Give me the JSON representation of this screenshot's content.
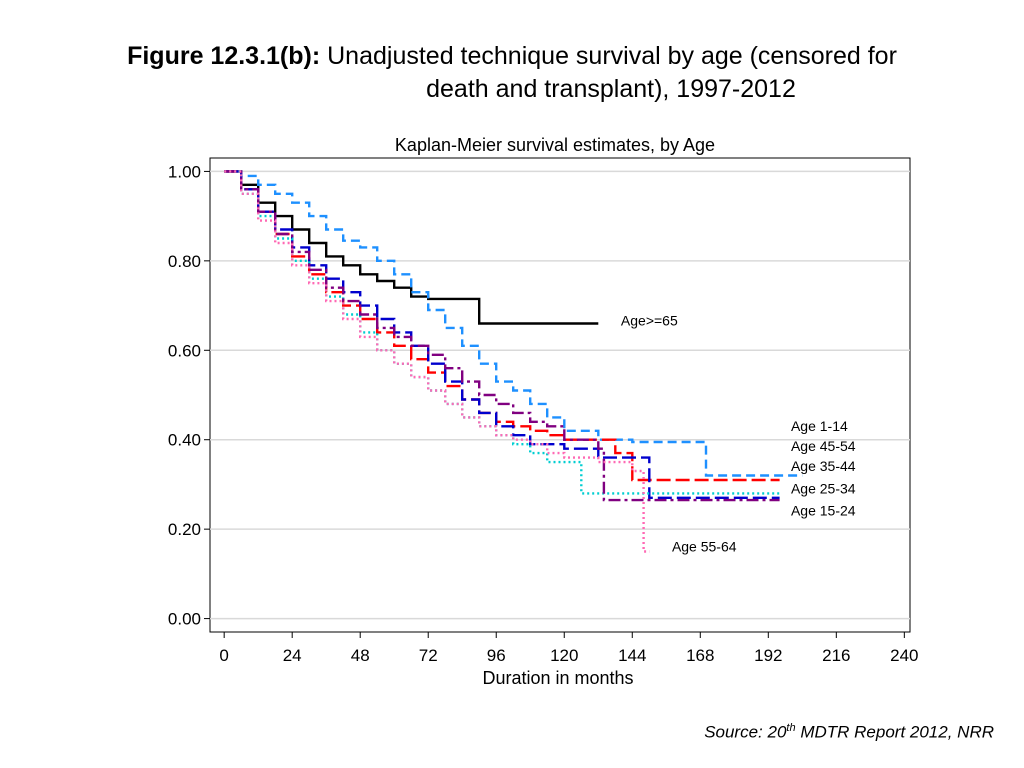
{
  "figure": {
    "label": "Figure 12.3.1(b):",
    "title_line1": "Unadjusted technique survival by age (censored for",
    "title_line2": "death and transplant), 1997-2012"
  },
  "source": {
    "prefix": "Source: 20",
    "superscript": "th",
    "suffix": " MDTR Report 2012, NRR"
  },
  "chart_data": {
    "type": "line",
    "title": "Kaplan-Meier survival estimates, by Age",
    "xlabel": "Duration in months",
    "ylabel": "",
    "xlim": [
      -5,
      242
    ],
    "ylim": [
      -0.03,
      1.03
    ],
    "x_ticks": [
      0,
      24,
      48,
      72,
      96,
      120,
      144,
      168,
      192,
      216,
      240
    ],
    "y_ticks": [
      0,
      0.2,
      0.4,
      0.6,
      0.8,
      1.0
    ],
    "y_tick_labels": [
      "0.00",
      "0.20",
      "0.40",
      "0.60",
      "0.80",
      "1.00"
    ],
    "grid": "horizontal",
    "step": true,
    "series": [
      {
        "name": "Age>=65",
        "color": "#000000",
        "dash": "solid",
        "x": [
          0,
          6,
          12,
          18,
          24,
          30,
          36,
          42,
          48,
          54,
          60,
          66,
          72,
          84,
          90,
          132
        ],
        "y": [
          1.0,
          0.97,
          0.93,
          0.9,
          0.87,
          0.84,
          0.81,
          0.79,
          0.77,
          0.755,
          0.74,
          0.72,
          0.715,
          0.715,
          0.66,
          0.66
        ]
      },
      {
        "name": "Age 1-14",
        "color": "#1E90FF",
        "dash": "dashed",
        "x": [
          0,
          6,
          12,
          18,
          24,
          30,
          36,
          42,
          48,
          54,
          60,
          66,
          72,
          78,
          84,
          90,
          96,
          102,
          108,
          114,
          120,
          132,
          144,
          156,
          168,
          170,
          192,
          204
        ],
        "y": [
          1.0,
          0.99,
          0.97,
          0.95,
          0.93,
          0.9,
          0.87,
          0.845,
          0.83,
          0.8,
          0.77,
          0.73,
          0.69,
          0.65,
          0.61,
          0.57,
          0.53,
          0.51,
          0.48,
          0.45,
          0.42,
          0.4,
          0.395,
          0.395,
          0.395,
          0.32,
          0.32,
          0.32
        ]
      },
      {
        "name": "Age 45-54",
        "color": "#FF0000",
        "dash": "longdash",
        "x": [
          0,
          6,
          12,
          18,
          24,
          30,
          36,
          42,
          48,
          54,
          60,
          66,
          72,
          78,
          84,
          90,
          96,
          102,
          108,
          114,
          120,
          132,
          138,
          144,
          156,
          168,
          196
        ],
        "y": [
          1.0,
          0.96,
          0.91,
          0.86,
          0.81,
          0.77,
          0.73,
          0.7,
          0.67,
          0.64,
          0.61,
          0.58,
          0.55,
          0.52,
          0.49,
          0.46,
          0.44,
          0.43,
          0.42,
          0.41,
          0.4,
          0.4,
          0.37,
          0.31,
          0.31,
          0.31,
          0.31
        ]
      },
      {
        "name": "Age 35-44",
        "color": "#0000CD",
        "dash": "longdash",
        "x": [
          0,
          6,
          12,
          18,
          24,
          30,
          36,
          42,
          48,
          54,
          60,
          66,
          72,
          78,
          84,
          90,
          96,
          102,
          108,
          114,
          120,
          132,
          144,
          150,
          168,
          196
        ],
        "y": [
          1.0,
          0.96,
          0.91,
          0.87,
          0.83,
          0.79,
          0.76,
          0.73,
          0.7,
          0.67,
          0.64,
          0.61,
          0.57,
          0.53,
          0.49,
          0.46,
          0.43,
          0.41,
          0.39,
          0.39,
          0.38,
          0.36,
          0.36,
          0.27,
          0.27,
          0.27
        ]
      },
      {
        "name": "Age 25-34",
        "color": "#00CED1",
        "dash": "dotted",
        "x": [
          0,
          6,
          12,
          18,
          24,
          30,
          36,
          42,
          48,
          54,
          60,
          66,
          72,
          78,
          84,
          90,
          96,
          102,
          108,
          114,
          120,
          126,
          144,
          168,
          196
        ],
        "y": [
          1.0,
          0.95,
          0.9,
          0.85,
          0.8,
          0.76,
          0.72,
          0.68,
          0.64,
          0.6,
          0.57,
          0.54,
          0.51,
          0.48,
          0.45,
          0.43,
          0.41,
          0.39,
          0.37,
          0.35,
          0.35,
          0.28,
          0.28,
          0.28,
          0.28
        ]
      },
      {
        "name": "Age 15-24",
        "color": "#800080",
        "dash": "dashdot",
        "x": [
          0,
          6,
          12,
          18,
          24,
          30,
          36,
          42,
          48,
          54,
          60,
          66,
          72,
          78,
          84,
          90,
          96,
          102,
          108,
          114,
          120,
          132,
          134,
          144,
          168,
          196
        ],
        "y": [
          1.0,
          0.96,
          0.91,
          0.86,
          0.82,
          0.78,
          0.74,
          0.71,
          0.68,
          0.65,
          0.63,
          0.61,
          0.59,
          0.56,
          0.53,
          0.5,
          0.48,
          0.46,
          0.44,
          0.43,
          0.4,
          0.38,
          0.265,
          0.265,
          0.265,
          0.265
        ]
      },
      {
        "name": "Age 55-64",
        "color": "#FF69B4",
        "dash": "dotted",
        "x": [
          0,
          6,
          12,
          18,
          24,
          30,
          36,
          42,
          48,
          54,
          60,
          66,
          72,
          78,
          84,
          90,
          96,
          102,
          108,
          114,
          120,
          132,
          144,
          148,
          150
        ],
        "y": [
          1.0,
          0.95,
          0.89,
          0.84,
          0.79,
          0.75,
          0.71,
          0.67,
          0.63,
          0.6,
          0.57,
          0.54,
          0.51,
          0.48,
          0.45,
          0.43,
          0.41,
          0.4,
          0.39,
          0.37,
          0.36,
          0.35,
          0.33,
          0.15,
          0.15
        ]
      }
    ],
    "annotations": [
      {
        "text": "Age>=65",
        "series": "Age>=65",
        "x": 140,
        "y": 0.655
      },
      {
        "text": "Age 1-14",
        "series": "Age 1-14",
        "x": 200,
        "y": 0.42
      },
      {
        "text": "Age 45-54",
        "series": "Age 45-54",
        "x": 200,
        "y": 0.375
      },
      {
        "text": "Age 35-44",
        "series": "Age 35-44",
        "x": 200,
        "y": 0.33
      },
      {
        "text": "Age 25-34",
        "series": "Age 25-34",
        "x": 200,
        "y": 0.28
      },
      {
        "text": "Age 15-24",
        "series": "Age 15-24",
        "x": 200,
        "y": 0.23
      },
      {
        "text": "Age 55-64",
        "series": "Age 55-64",
        "x": 158,
        "y": 0.15
      }
    ]
  }
}
